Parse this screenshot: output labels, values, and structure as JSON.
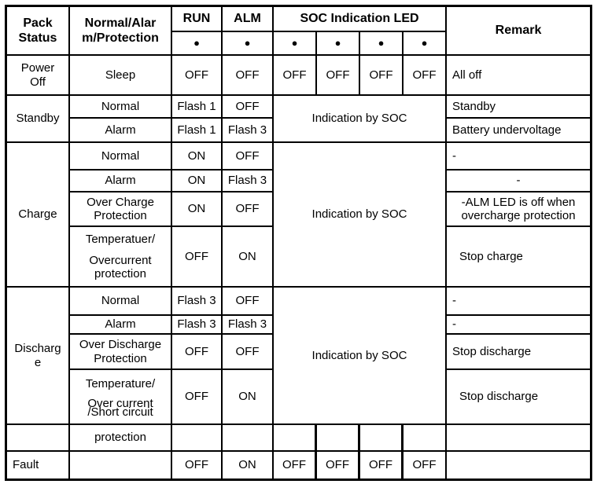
{
  "header": {
    "pack_status": "Pack\nStatus",
    "normal_alarm_protection": "Normal/Alar\nm/Protection",
    "run": "RUN",
    "alm": "ALM",
    "soc": "SOC Indication LED",
    "remark": "Remark",
    "bullet": "●"
  },
  "indication_by_soc": "Indication by SOC",
  "sections": {
    "power_off": {
      "pack": "Power\nOff",
      "mode": "Sleep",
      "run": "OFF",
      "alm": "OFF",
      "soc": [
        "OFF",
        "OFF",
        "OFF",
        "OFF"
      ],
      "remark": "All off"
    },
    "standby": {
      "label": "Standby",
      "soc": "Indication by SOC",
      "rows": [
        {
          "mode": "Normal",
          "run": "Flash 1",
          "alm": "OFF",
          "remark": "Standby"
        },
        {
          "mode": "Alarm",
          "run": "Flash 1",
          "alm": "Flash 3",
          "remark": "Battery undervoltage"
        }
      ]
    },
    "charge": {
      "label": "Charge",
      "soc": "Indication by SOC",
      "rows": [
        {
          "mode": "Normal",
          "run": "ON",
          "alm": "OFF",
          "remark": "-"
        },
        {
          "mode": "Alarm",
          "run": "ON",
          "alm": "Flash 3",
          "remark": "-"
        },
        {
          "mode": "Over Charge\nProtection",
          "run": "ON",
          "alm": "OFF",
          "remark": "-ALM LED is off when\novercharge protection"
        },
        {
          "mode_top": "Temperatuer/",
          "mode_bottom": "Overcurrent\nprotection",
          "run": "OFF",
          "alm": "ON",
          "remark": "Stop charge"
        }
      ]
    },
    "discharge": {
      "label": "Discharg\ne",
      "soc": "Indication by SOC",
      "rows": [
        {
          "mode": "Normal",
          "run": "Flash 3",
          "alm": "OFF",
          "remark": "-"
        },
        {
          "mode": "Alarm",
          "run": "Flash 3",
          "alm": "Flash 3",
          "remark": "-"
        },
        {
          "mode": "Over Discharge\nProtection",
          "run": "OFF",
          "alm": "OFF",
          "remark": "Stop discharge"
        },
        {
          "mode_top": "Temperature/",
          "mode_bottom": "Over current\n/Short circuit",
          "run": "OFF",
          "alm": "ON",
          "remark": "Stop discharge"
        }
      ]
    },
    "protection_row": {
      "mode": "protection"
    },
    "fault": {
      "label": "Fault",
      "run": "OFF",
      "alm": "ON",
      "soc": [
        "OFF",
        "OFF",
        "OFF",
        "OFF"
      ]
    }
  },
  "colors": {
    "border": "#000000",
    "background": "#ffffff",
    "text": "#000000"
  }
}
